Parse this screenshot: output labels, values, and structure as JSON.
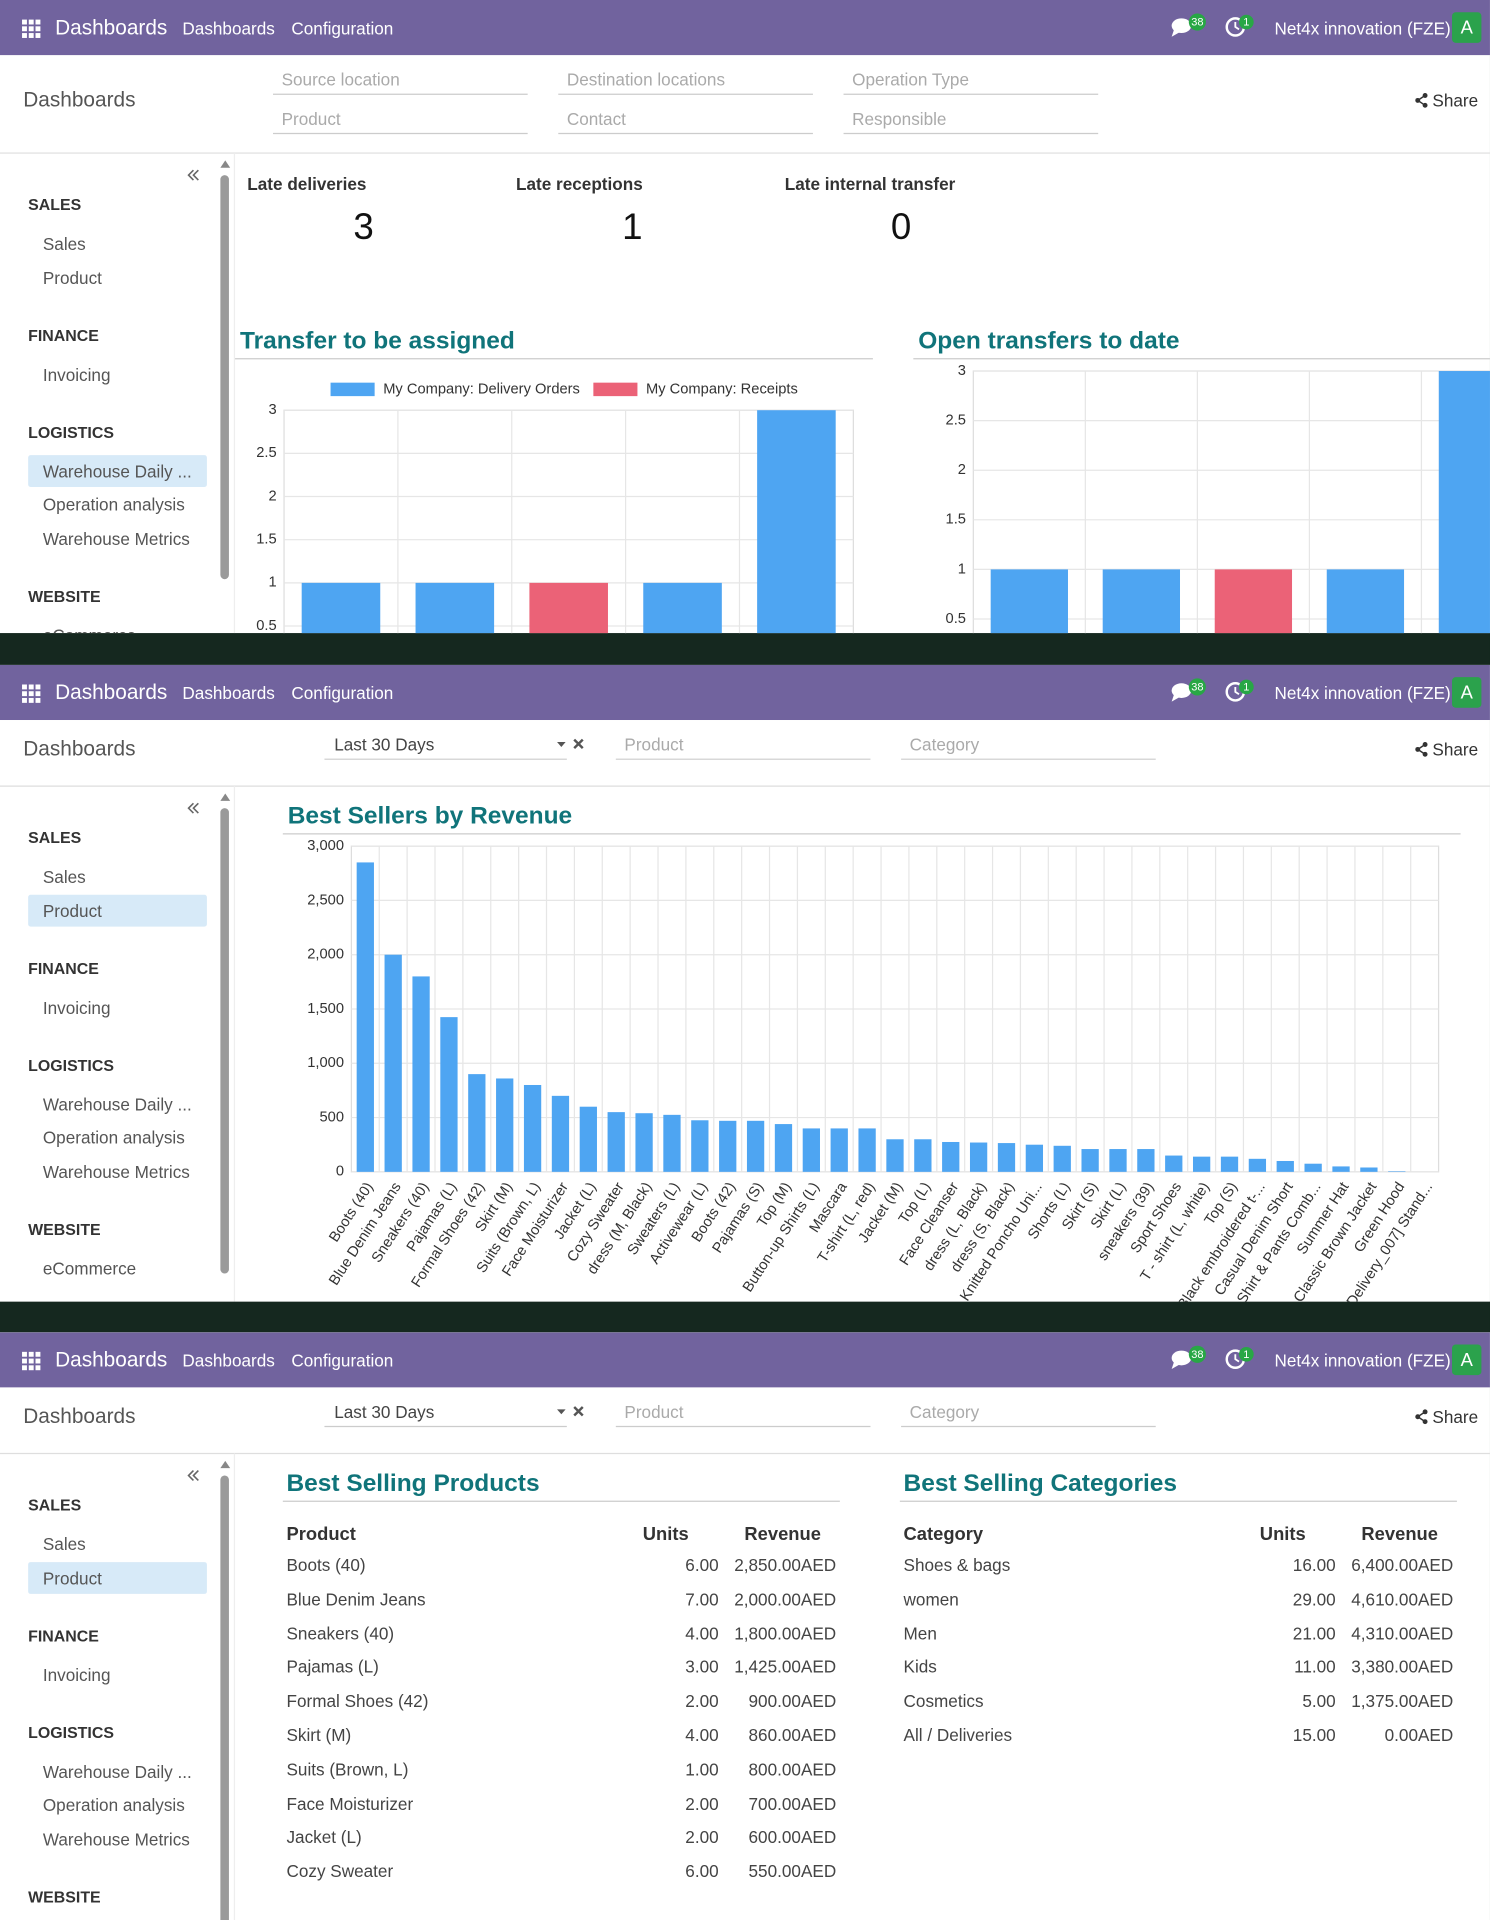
{
  "navbar": {
    "app": "Dashboards",
    "menu": [
      "Dashboards",
      "Configuration"
    ],
    "messages": "38",
    "activities": "1",
    "company": "Net4x innovation (FZE)",
    "avatar": "A"
  },
  "breadcrumb": "Dashboards",
  "share": "Share",
  "screens": [
    {
      "filters": [
        [
          "Source location",
          "Destination locations",
          "Operation Type"
        ],
        [
          "Product",
          "Contact",
          "Responsible"
        ]
      ],
      "sidebar": [
        {
          "section": "SALES",
          "items": [
            {
              "label": "Sales"
            },
            {
              "label": "Product"
            }
          ]
        },
        {
          "section": "FINANCE",
          "items": [
            {
              "label": "Invoicing"
            }
          ]
        },
        {
          "section": "LOGISTICS",
          "items": [
            {
              "label": "Warehouse Daily ...",
              "selected": true
            },
            {
              "label": "Operation analysis"
            },
            {
              "label": "Warehouse Metrics"
            }
          ]
        },
        {
          "section": "WEBSITE",
          "items": [
            {
              "label": "eCommerce"
            }
          ]
        }
      ],
      "kpis": [
        {
          "label": "Late deliveries",
          "value": 3
        },
        {
          "label": "Late receptions",
          "value": 1
        },
        {
          "label": "Late internal transfer",
          "value": 0
        }
      ]
    },
    {
      "date_filter": "Last 30 Days",
      "filters": [
        [
          "Product",
          "Category"
        ]
      ],
      "sidebar": [
        {
          "section": "SALES",
          "items": [
            {
              "label": "Sales"
            },
            {
              "label": "Product",
              "selected": true
            }
          ]
        },
        {
          "section": "FINANCE",
          "items": [
            {
              "label": "Invoicing"
            }
          ]
        },
        {
          "section": "LOGISTICS",
          "items": [
            {
              "label": "Warehouse Daily ..."
            },
            {
              "label": "Operation analysis"
            },
            {
              "label": "Warehouse Metrics"
            }
          ]
        },
        {
          "section": "WEBSITE",
          "items": [
            {
              "label": "eCommerce"
            }
          ]
        }
      ]
    },
    {
      "date_filter": "Last 30 Days",
      "filters": [
        [
          "Product",
          "Category"
        ]
      ],
      "sidebar": [
        {
          "section": "SALES",
          "items": [
            {
              "label": "Sales"
            },
            {
              "label": "Product",
              "selected": true
            }
          ]
        },
        {
          "section": "FINANCE",
          "items": [
            {
              "label": "Invoicing"
            }
          ]
        },
        {
          "section": "LOGISTICS",
          "items": [
            {
              "label": "Warehouse Daily ..."
            },
            {
              "label": "Operation analysis"
            },
            {
              "label": "Warehouse Metrics"
            }
          ]
        },
        {
          "section": "WEBSITE",
          "items": []
        }
      ],
      "tables": [
        {
          "title": "Best Selling Products",
          "columns": [
            "Product",
            "Units",
            "Revenue"
          ],
          "rows": [
            [
              "Boots (40)",
              "6.00",
              "2,850.00AED"
            ],
            [
              "Blue Denim Jeans",
              "7.00",
              "2,000.00AED"
            ],
            [
              "Sneakers (40)",
              "4.00",
              "1,800.00AED"
            ],
            [
              "Pajamas (L)",
              "3.00",
              "1,425.00AED"
            ],
            [
              "Formal Shoes (42)",
              "2.00",
              "900.00AED"
            ],
            [
              "Skirt (M)",
              "4.00",
              "860.00AED"
            ],
            [
              "Suits (Brown, L)",
              "1.00",
              "800.00AED"
            ],
            [
              "Face Moisturizer",
              "2.00",
              "700.00AED"
            ],
            [
              "Jacket (L)",
              "2.00",
              "600.00AED"
            ],
            [
              "Cozy Sweater",
              "6.00",
              "550.00AED"
            ]
          ]
        },
        {
          "title": "Best Selling Categories",
          "columns": [
            "Category",
            "Units",
            "Revenue"
          ],
          "rows": [
            [
              "Shoes & bags",
              "16.00",
              "6,400.00AED"
            ],
            [
              "women",
              "29.00",
              "4,610.00AED"
            ],
            [
              "Men",
              "21.00",
              "4,310.00AED"
            ],
            [
              "Kids",
              "11.00",
              "3,380.00AED"
            ],
            [
              "Cosmetics",
              "5.00",
              "1,375.00AED"
            ],
            [
              "All / Deliveries",
              "15.00",
              "0.00AED"
            ]
          ]
        }
      ]
    }
  ],
  "chart_data": [
    {
      "type": "bar",
      "title": "Transfer to be assigned",
      "stacked": true,
      "legend": "top",
      "grid": true,
      "categories": [
        null,
        null,
        null,
        null,
        null
      ],
      "series": [
        {
          "name": "My Company: Delivery Orders",
          "color": "#4ea5f2",
          "values": [
            1,
            1,
            null,
            1,
            3
          ]
        },
        {
          "name": "My Company: Receipts",
          "color": "#eb6277",
          "values": [
            null,
            null,
            1,
            null,
            null
          ]
        }
      ],
      "ylim": [
        0,
        3
      ],
      "yticks": [
        0.5,
        1,
        1.5,
        2,
        2.5,
        3
      ]
    },
    {
      "type": "bar",
      "title": "Open transfers to date",
      "grid": true,
      "categories": [
        null,
        null,
        null,
        null,
        null
      ],
      "values": [
        1,
        1,
        1,
        1,
        3
      ],
      "colors": [
        "#4ea5f2",
        "#4ea5f2",
        "#eb6277",
        "#4ea5f2",
        "#4ea5f2"
      ],
      "ylim": [
        0,
        3
      ],
      "yticks": [
        0.5,
        1,
        1.5,
        2,
        2.5,
        3
      ]
    },
    {
      "type": "bar",
      "title": "Best Sellers by Revenue",
      "grid": true,
      "color": "#4ea5f2",
      "categories": [
        "Boots (40)",
        "Blue Denim Jeans",
        "Sneakers (40)",
        "Pajamas (L)",
        "Formal Shoes (42)",
        "Skirt (M)",
        "Suits (Brown, L)",
        "Face Moisturizer",
        "Jacket (L)",
        "Cozy Sweater",
        "dress (M, Black)",
        "Sweaters (L)",
        "Activewear (L)",
        "Boots (42)",
        "Pajamas (S)",
        "Top (M)",
        "Button-up Shirts (L)",
        "Mascara",
        "T-shirt (L, red)",
        "Jacket (M)",
        "Top (L)",
        "Face Cleanser",
        "dress (L, Black)",
        "dress (S, Black)",
        "Knitted Poncho Uni...",
        "Shorts (L)",
        "Skirt (S)",
        "Skirt (L)",
        "sneakers (39)",
        "Sport Shoes",
        "T - shirt (L, white)",
        "Top (S)",
        "Black embroidered t-...",
        "Casual Denim Short",
        "Shirt & Pants Comb...",
        "Summer Hat",
        "Classic Brown Jacket",
        "Green Hood",
        "[Delivery_007] Stand..."
      ],
      "values": [
        2850,
        2000,
        1800,
        1425,
        900,
        860,
        800,
        700,
        600,
        550,
        540,
        525,
        475,
        470,
        470,
        440,
        400,
        400,
        400,
        300,
        300,
        275,
        270,
        265,
        250,
        240,
        210,
        210,
        210,
        150,
        140,
        140,
        120,
        100,
        75,
        50,
        40,
        5,
        0
      ],
      "ylim": [
        0,
        3000
      ],
      "yticks": [
        0,
        500,
        {
          "value": 1000,
          "label": "1,000"
        },
        {
          "value": 1500,
          "label": "1,500"
        },
        {
          "value": 2000,
          "label": "2,000"
        },
        {
          "value": 2500,
          "label": "2,500"
        },
        {
          "value": 3000,
          "label": "3,000"
        }
      ]
    }
  ]
}
